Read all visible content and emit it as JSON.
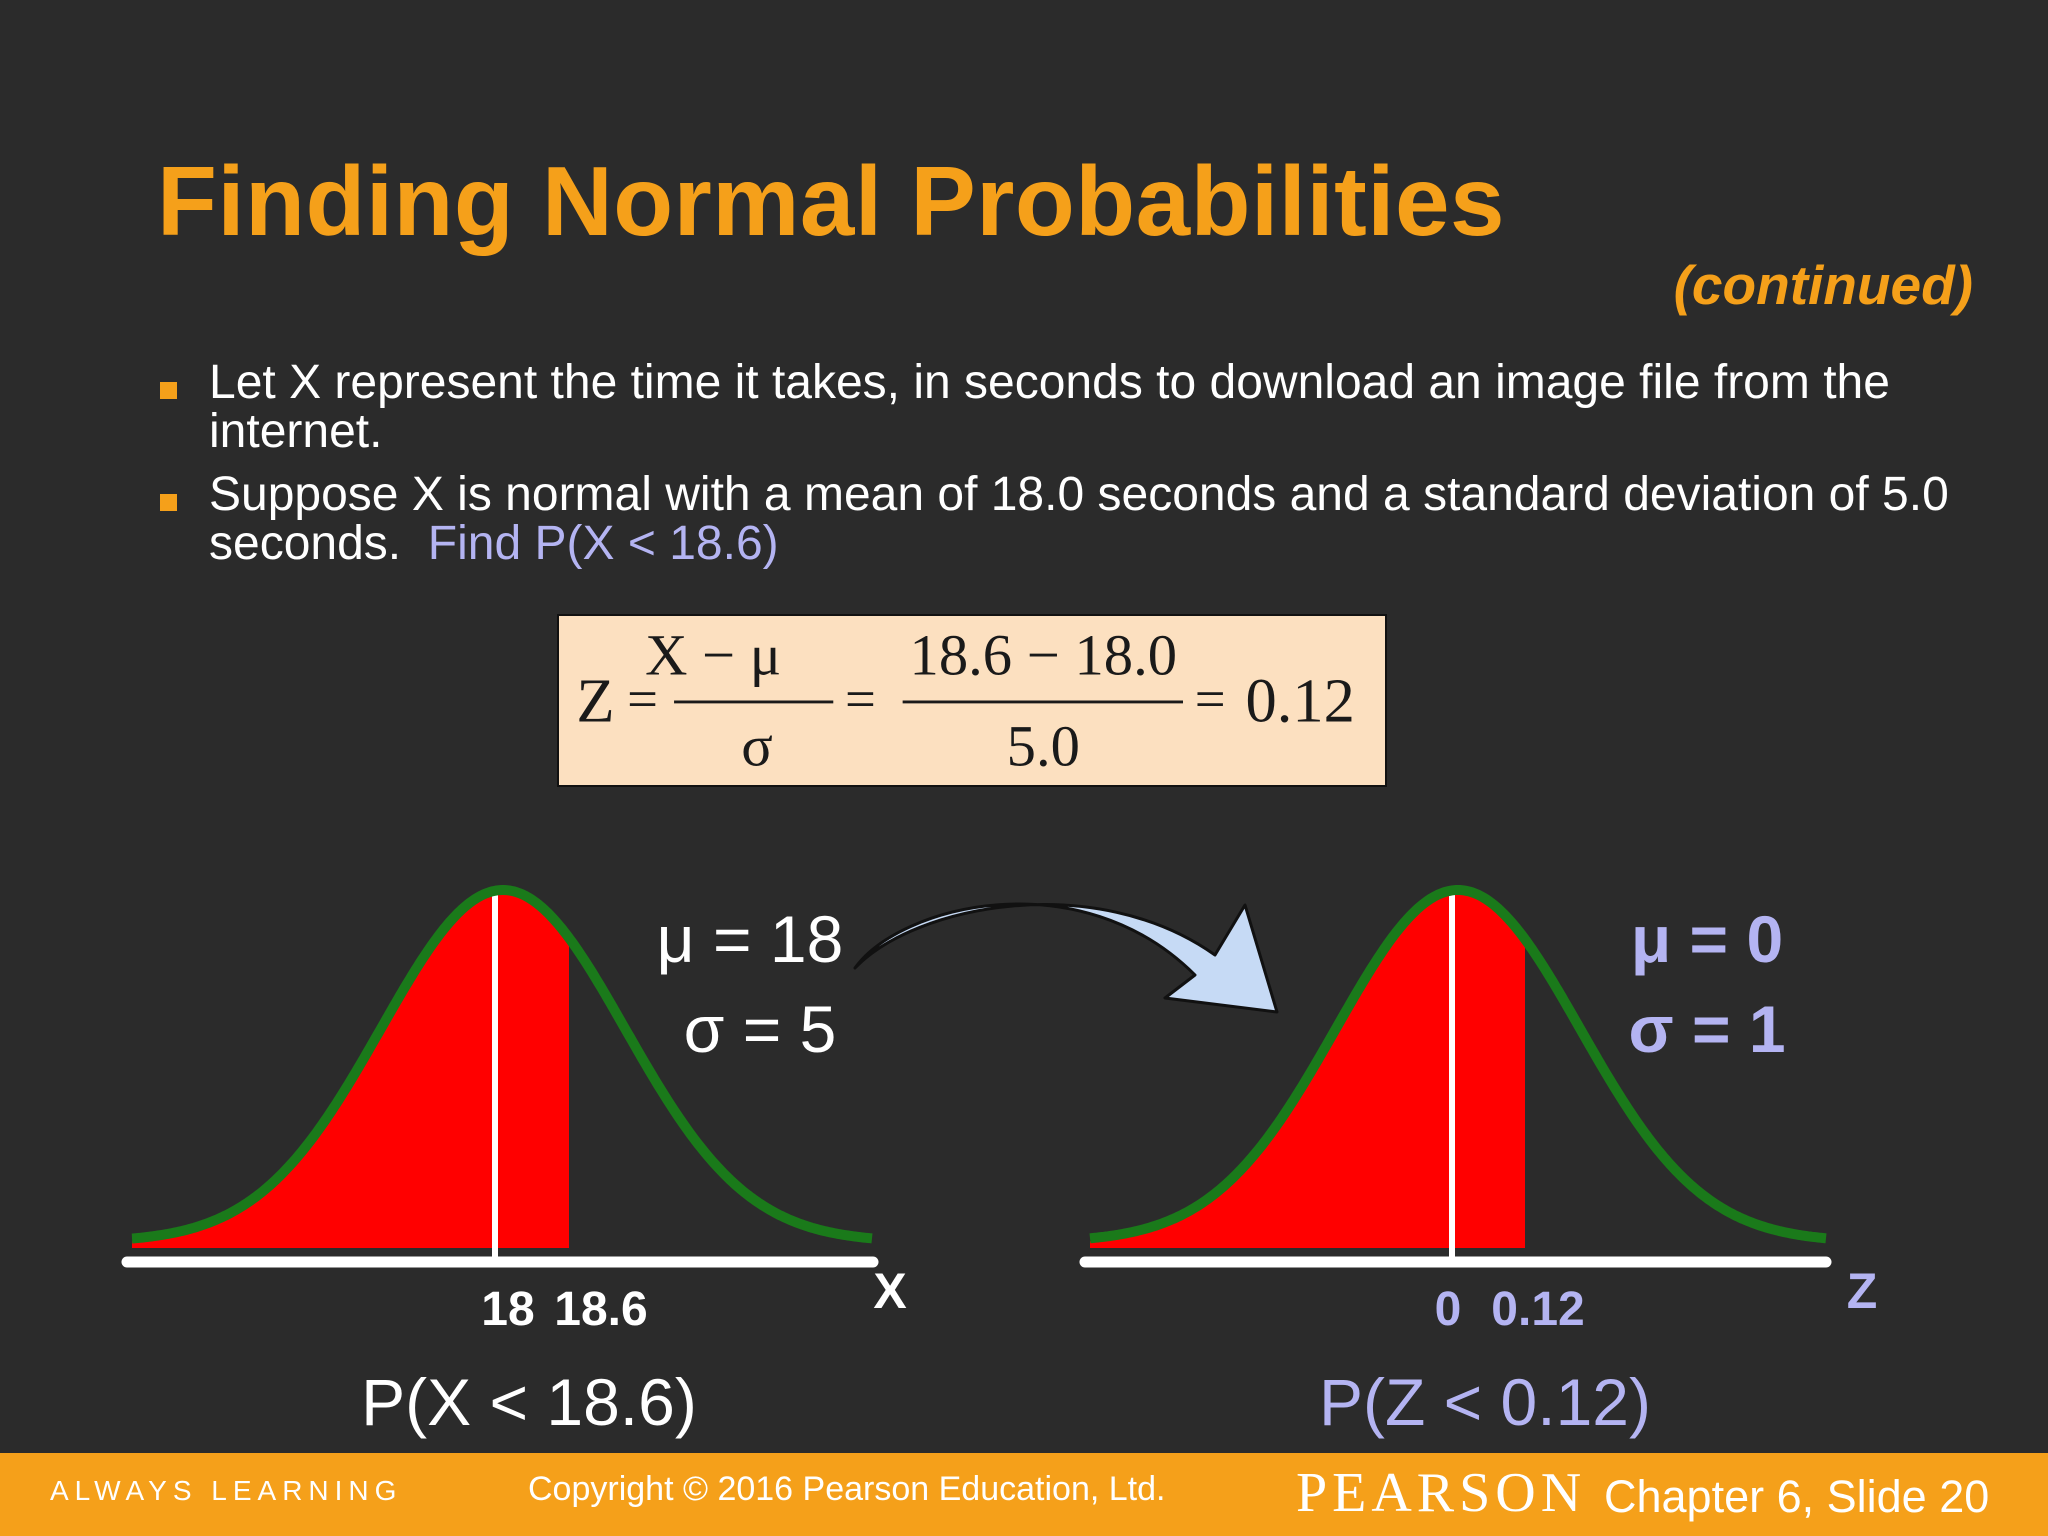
{
  "slide": {
    "title": "Finding Normal Probabilities",
    "subtitle": "(continued)",
    "bullets": [
      {
        "text": "Let X represent the time it takes, in seconds to download an image file from the internet.",
        "highlight": ""
      },
      {
        "text": "Suppose X is normal with a mean of 18.0 seconds and a standard deviation of 5.0 seconds.",
        "highlight": "Find P(X < 18.6)"
      }
    ]
  },
  "formula": {
    "lhs": "Z",
    "eq": "=",
    "frac1_num": "X − μ",
    "frac1_den": "σ",
    "frac2_num": "18.6 − 18.0",
    "frac2_den": "5.0",
    "result": "0.12"
  },
  "diagram": {
    "left": {
      "mu_label": "μ = 18",
      "sigma_label": "σ = 5",
      "tick_mean": "18",
      "tick_value": "18.6",
      "axis_label": "X",
      "probability": "P(X < 18.6)"
    },
    "right": {
      "mu_label": "μ = 0",
      "sigma_label": "σ = 1",
      "tick_mean": "0",
      "tick_value": "0.12",
      "axis_label": "Z",
      "probability": "P(Z < 0.12)"
    },
    "colors": {
      "curve": "#1a7a1a",
      "shade": "#ff0000",
      "axis": "#ffffff",
      "arrow_fill": "#c6daf5",
      "highlight": "#b4b4f2",
      "accent": "#f5a01a"
    }
  },
  "footer": {
    "left": "ALWAYS LEARNING",
    "copyright": "Copyright © 2016 Pearson Education, Ltd.",
    "brand": "PEARSON",
    "chapter": "Chapter 6, Slide 20"
  }
}
